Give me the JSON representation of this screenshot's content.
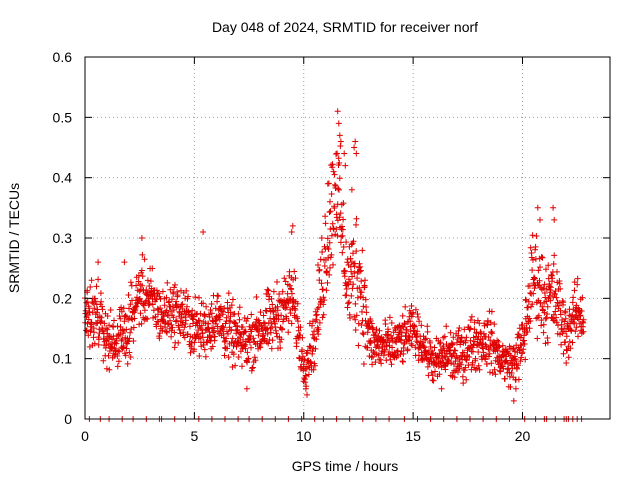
{
  "chart_data": {
    "type": "scatter",
    "title": "Day 048 of 2024, SRMTID for receiver norf",
    "xlabel": "GPS time / hours",
    "ylabel": "SRMTID / TECUs",
    "xlim": [
      0,
      24
    ],
    "ylim": [
      0,
      0.6
    ],
    "x_ticks": [
      "0",
      "5",
      "10",
      "15",
      "20"
    ],
    "y_ticks": [
      "0",
      "0.1",
      "0.2",
      "0.3",
      "0.4",
      "0.5",
      "0.6"
    ],
    "grid": true,
    "marker": "+",
    "color": "#e00000",
    "series": [
      {
        "name": "SRMTID",
        "profile": [
          [
            0.0,
            0.17,
            0.04
          ],
          [
            0.5,
            0.18,
            0.045
          ],
          [
            1.0,
            0.13,
            0.035
          ],
          [
            1.5,
            0.13,
            0.04
          ],
          [
            2.0,
            0.15,
            0.04
          ],
          [
            2.5,
            0.21,
            0.045
          ],
          [
            3.0,
            0.2,
            0.045
          ],
          [
            3.5,
            0.17,
            0.04
          ],
          [
            4.0,
            0.18,
            0.04
          ],
          [
            4.5,
            0.17,
            0.045
          ],
          [
            5.0,
            0.15,
            0.04
          ],
          [
            5.5,
            0.15,
            0.04
          ],
          [
            6.0,
            0.17,
            0.04
          ],
          [
            6.5,
            0.15,
            0.045
          ],
          [
            7.0,
            0.13,
            0.04
          ],
          [
            7.5,
            0.13,
            0.04
          ],
          [
            8.0,
            0.15,
            0.045
          ],
          [
            8.5,
            0.16,
            0.045
          ],
          [
            9.0,
            0.18,
            0.045
          ],
          [
            9.5,
            0.2,
            0.05
          ],
          [
            10.0,
            0.09,
            0.03
          ],
          [
            10.5,
            0.13,
            0.04
          ],
          [
            11.0,
            0.28,
            0.09
          ],
          [
            11.5,
            0.4,
            0.09
          ],
          [
            12.0,
            0.22,
            0.06
          ],
          [
            12.5,
            0.25,
            0.1
          ],
          [
            13.0,
            0.13,
            0.04
          ],
          [
            13.5,
            0.12,
            0.035
          ],
          [
            14.0,
            0.12,
            0.035
          ],
          [
            14.5,
            0.13,
            0.035
          ],
          [
            15.0,
            0.15,
            0.03
          ],
          [
            15.5,
            0.12,
            0.03
          ],
          [
            16.0,
            0.09,
            0.03
          ],
          [
            16.5,
            0.11,
            0.04
          ],
          [
            17.0,
            0.1,
            0.035
          ],
          [
            17.5,
            0.12,
            0.04
          ],
          [
            18.0,
            0.13,
            0.04
          ],
          [
            18.5,
            0.13,
            0.04
          ],
          [
            19.0,
            0.1,
            0.03
          ],
          [
            19.5,
            0.09,
            0.03
          ],
          [
            20.0,
            0.12,
            0.04
          ],
          [
            20.5,
            0.24,
            0.07
          ],
          [
            21.0,
            0.2,
            0.06
          ],
          [
            21.5,
            0.2,
            0.06
          ],
          [
            22.0,
            0.14,
            0.04
          ],
          [
            22.5,
            0.18,
            0.04
          ],
          [
            22.8,
            0.17,
            0.04
          ]
        ],
        "spikes": [
          [
            11.55,
            0.51
          ],
          [
            11.6,
            0.49
          ],
          [
            11.65,
            0.47
          ],
          [
            11.7,
            0.46
          ],
          [
            12.3,
            0.45
          ],
          [
            12.35,
            0.46
          ],
          [
            12.4,
            0.44
          ],
          [
            11.9,
            0.42
          ],
          [
            11.1,
            0.39
          ],
          [
            11.2,
            0.36
          ],
          [
            20.7,
            0.35
          ],
          [
            20.8,
            0.33
          ],
          [
            21.4,
            0.35
          ],
          [
            21.45,
            0.33
          ],
          [
            2.6,
            0.3
          ],
          [
            9.5,
            0.32
          ],
          [
            9.45,
            0.31
          ],
          [
            5.4,
            0.31
          ],
          [
            12.2,
            0.38
          ],
          [
            11.85,
            0.44
          ],
          [
            0.1,
            0.21
          ],
          [
            0.3,
            0.23
          ],
          [
            0.6,
            0.26
          ],
          [
            1.8,
            0.26
          ],
          [
            10.1,
            0.05
          ],
          [
            10.15,
            0.04
          ],
          [
            19.6,
            0.03
          ],
          [
            19.7,
            0.05
          ],
          [
            7.4,
            0.05
          ],
          [
            16.3,
            0.05
          ]
        ],
        "zero_points_x": [
          0.2,
          0.7,
          1.1,
          1.7,
          2.2,
          2.8,
          3.4,
          3.5,
          4.1,
          4.6,
          5.2,
          5.8,
          6.4,
          7.0,
          7.5,
          8.1,
          8.7,
          9.3,
          9.9,
          10.5,
          10.9,
          11.5,
          12.1,
          12.7,
          13.3,
          13.9,
          14.6,
          15.2,
          15.8,
          16.4,
          17.0,
          17.6,
          18.2,
          18.8,
          19.4,
          20.1,
          20.6,
          21.0,
          21.1,
          21.5,
          21.9,
          22.0,
          22.1,
          22.3,
          22.5,
          22.7
        ]
      }
    ]
  }
}
